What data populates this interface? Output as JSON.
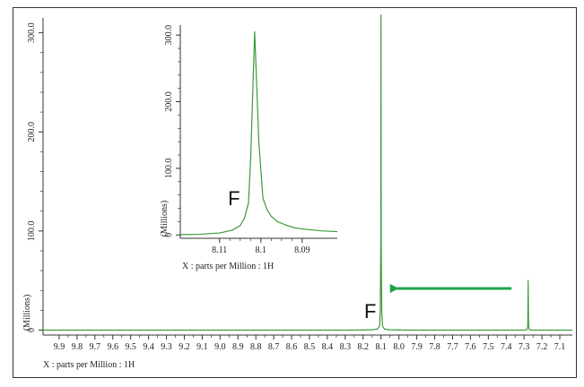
{
  "colors": {
    "spectrum": "#3a9a3a",
    "arrow": "#1fa34a",
    "axis": "#333333"
  },
  "chart_data": [
    {
      "type": "line",
      "id": "main",
      "title": "",
      "xlabel": "X : parts per Million : 1H",
      "ylabel": "(Millions)",
      "xlim": [
        9.99,
        7.03
      ],
      "ylim": [
        -5,
        315
      ],
      "x_reversed": true,
      "x_ticks": [
        "9.9",
        "9.8",
        "9.7",
        "9.6",
        "9.5",
        "9.4",
        "9.3",
        "9.2",
        "9.1",
        "9.0",
        "8.9",
        "8.8",
        "8.7",
        "8.6",
        "8.5",
        "8.4",
        "8.3",
        "8.2",
        "8.1",
        "8.0",
        "7.9",
        "7.8",
        "7.7",
        "7.6",
        "7.5",
        "7.4",
        "7.3",
        "7.2",
        "7.1"
      ],
      "y_ticks": [
        "0",
        "100.0",
        "200.0",
        "300.0"
      ],
      "series": [
        {
          "x": [
            9.99,
            8.25,
            8.15,
            8.12,
            8.108,
            8.104,
            8.101,
            8.1,
            8.099,
            8.096,
            8.092,
            8.08,
            8.05,
            7.95,
            7.5,
            7.3,
            7.283,
            7.279,
            7.277,
            7.275,
            7.271,
            7.26,
            7.03
          ],
          "y": [
            0,
            0,
            0.3,
            1.0,
            4,
            20,
            90,
            318,
            90,
            20,
            4,
            1.0,
            0.3,
            0,
            0,
            0,
            0.5,
            6,
            50,
            6,
            0.5,
            0,
            0
          ]
        }
      ],
      "annotations": [
        {
          "text": "F",
          "x": 8.16,
          "y": 12
        }
      ],
      "arrow": {
        "from_x": 7.37,
        "to_x": 8.06,
        "y": 42
      }
    },
    {
      "type": "line",
      "id": "inset",
      "title": "",
      "xlabel": "X : parts per Million : 1H",
      "ylabel": "(Millions)",
      "xlim": [
        8.1195,
        8.0815
      ],
      "ylim": [
        -5,
        315
      ],
      "x_reversed": true,
      "x_ticks": [
        "8.11",
        "8.1",
        "8.09"
      ],
      "y_ticks": [
        "0",
        "100.0",
        "200.0",
        "300.0"
      ],
      "series": [
        {
          "x": [
            8.1195,
            8.115,
            8.11,
            8.107,
            8.105,
            8.104,
            8.103,
            8.1025,
            8.1015,
            8.1005,
            8.0995,
            8.0985,
            8.0975,
            8.096,
            8.094,
            8.092,
            8.09,
            8.085,
            8.0815
          ],
          "y": [
            0.5,
            1,
            3,
            7,
            14,
            25,
            48,
            110,
            305,
            140,
            55,
            38,
            28,
            20,
            15,
            11,
            9,
            6,
            5
          ]
        }
      ],
      "annotations": [
        {
          "text": "F",
          "x": 8.1065,
          "y": 45
        }
      ]
    }
  ]
}
